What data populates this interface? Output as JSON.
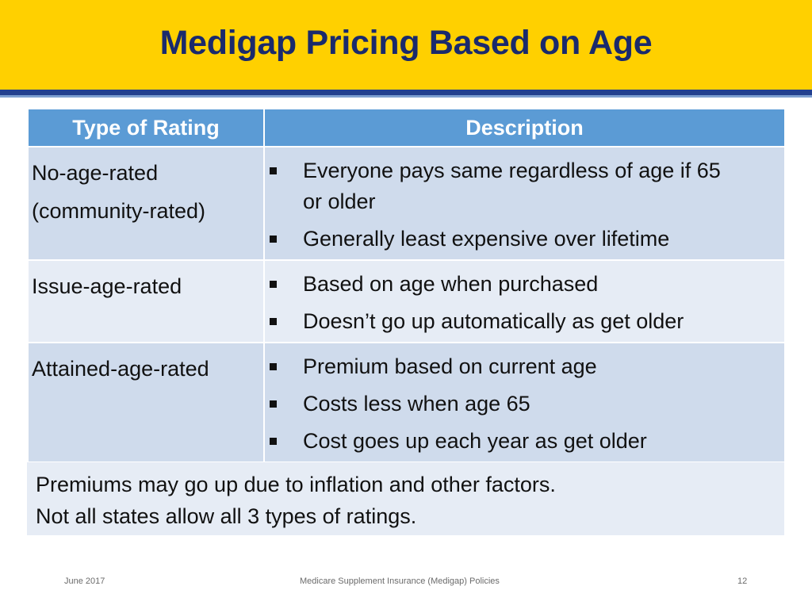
{
  "title": "Medigap Pricing Based on Age",
  "table": {
    "headers": [
      "Type of Rating",
      "Description"
    ],
    "rows": [
      {
        "type_lines": [
          "No-age-rated",
          "(community-rated)"
        ],
        "bullets": [
          "Everyone pays same regardless of age if 65 or older",
          "Generally least expensive over lifetime"
        ]
      },
      {
        "type_lines": [
          "Issue-age-rated"
        ],
        "bullets": [
          "Based on age when purchased",
          "Doesn’t go up automatically as get older"
        ]
      },
      {
        "type_lines": [
          "Attained-age-rated"
        ],
        "bullets": [
          "Premium based on current age",
          "Costs less when age 65",
          "Cost goes up each year as get older"
        ]
      }
    ]
  },
  "note": {
    "lines": [
      "Premiums may go up due to inflation and other factors.",
      "Not all states allow all 3 types of ratings."
    ]
  },
  "footer": {
    "date": "June 2017",
    "center": "Medicare Supplement Insurance (Medigap) Policies",
    "page": "12"
  },
  "colors": {
    "title_band": "#ffd000",
    "title_text": "#1a2a6c",
    "header_fill": "#5b9bd5",
    "row_fill_dark": "#cfdbec",
    "row_fill_light": "#e6ecf5"
  }
}
